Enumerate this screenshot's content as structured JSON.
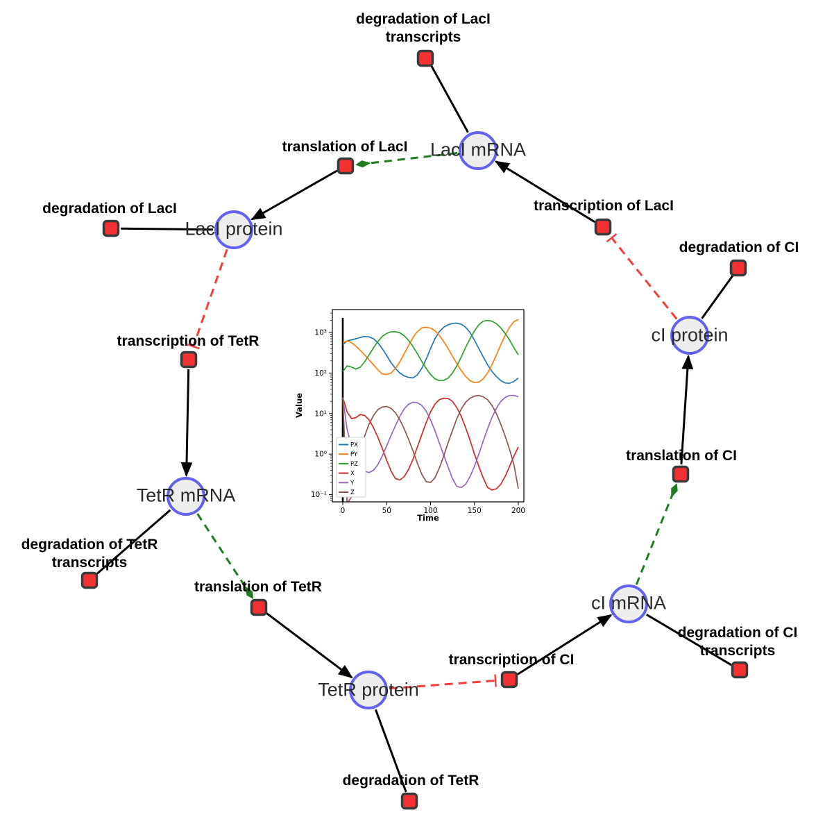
{
  "figure": {
    "title": "repressilator reaction network",
    "colors": {
      "species_fill": "#ededed",
      "species_border": "#6262f2",
      "reaction_fill": "#f43131",
      "reaction_border": "#3a3a3a",
      "production_edge": "#000000",
      "consumption_edge": "#000000",
      "modifier_edge": "#1e7d1e",
      "inhibition_edge": "#f93b3b"
    }
  },
  "diagram": {
    "species": [
      {
        "label": "LacI mRNA"
      },
      {
        "label": "LacI protein"
      },
      {
        "label": "TetR mRNA"
      },
      {
        "label": "TetR protein"
      },
      {
        "label": "cI mRNA"
      },
      {
        "label": "cI protein"
      }
    ],
    "reactions": [
      {
        "lines": [
          "degradation of LacI",
          "transcripts"
        ]
      },
      {
        "lines": [
          "translation of LacI"
        ]
      },
      {
        "lines": [
          "degradation of LacI"
        ]
      },
      {
        "lines": [
          "transcription of LacI"
        ]
      },
      {
        "lines": [
          "degradation of CI"
        ]
      },
      {
        "lines": [
          "transcription of TetR"
        ]
      },
      {
        "lines": [
          "degradation of TetR",
          "transcripts"
        ]
      },
      {
        "lines": [
          "translation of TetR"
        ]
      },
      {
        "lines": [
          "translation of CI"
        ]
      },
      {
        "lines": [
          "degradation of CI",
          "transcripts"
        ]
      },
      {
        "lines": [
          "transcription of CI"
        ]
      },
      {
        "lines": [
          "degradation of TetR"
        ]
      }
    ],
    "edges": [
      {
        "source": "LacI mRNA",
        "target": "degradation of LacI transcripts",
        "type": "consumption"
      },
      {
        "source": "transcription of LacI",
        "target": "LacI mRNA",
        "type": "production"
      },
      {
        "source": "LacI mRNA",
        "target": "translation of LacI",
        "type": "modifier"
      },
      {
        "source": "translation of LacI",
        "target": "LacI protein",
        "type": "production"
      },
      {
        "source": "LacI protein",
        "target": "degradation of LacI",
        "type": "consumption"
      },
      {
        "source": "LacI protein",
        "target": "transcription of TetR",
        "type": "inhibition"
      },
      {
        "source": "transcription of TetR",
        "target": "TetR mRNA",
        "type": "production"
      },
      {
        "source": "TetR mRNA",
        "target": "degradation of TetR transcripts",
        "type": "consumption"
      },
      {
        "source": "TetR mRNA",
        "target": "translation of TetR",
        "type": "modifier"
      },
      {
        "source": "translation of TetR",
        "target": "TetR protein",
        "type": "production"
      },
      {
        "source": "TetR protein",
        "target": "degradation of TetR",
        "type": "consumption"
      },
      {
        "source": "TetR protein",
        "target": "transcription of CI",
        "type": "inhibition"
      },
      {
        "source": "transcription of CI",
        "target": "cI mRNA",
        "type": "production"
      },
      {
        "source": "cI mRNA",
        "target": "degradation of CI transcripts",
        "type": "consumption"
      },
      {
        "source": "cI mRNA",
        "target": "translation of CI",
        "type": "modifier"
      },
      {
        "source": "translation of CI",
        "target": "cI protein",
        "type": "production"
      },
      {
        "source": "cI protein",
        "target": "degradation of CI",
        "type": "consumption"
      },
      {
        "source": "cI protein",
        "target": "transcription of LacI",
        "type": "inhibition"
      }
    ]
  },
  "chart_data": {
    "type": "line",
    "title": "",
    "xlabel": "Time",
    "ylabel": "Value",
    "yscale": "log",
    "xlim": [
      -10,
      210
    ],
    "ylim": [
      0.067,
      3600
    ],
    "xticks": [
      0,
      50,
      100,
      150,
      200
    ],
    "yticks": [
      {
        "label": "10³",
        "value": 1000
      },
      {
        "label": "10²",
        "value": 100
      },
      {
        "label": "10¹",
        "value": 10
      },
      {
        "label": "10⁰",
        "value": 1
      },
      {
        "label": "10⁻¹",
        "value": 0.1
      }
    ],
    "vline_x": 0,
    "legend_position": "lower left",
    "t": [
      0,
      5,
      10,
      15,
      20,
      25,
      30,
      35,
      40,
      45,
      50,
      55,
      60,
      65,
      70,
      75,
      80,
      85,
      90,
      95,
      100,
      105,
      110,
      115,
      120,
      125,
      130,
      135,
      140,
      145,
      150,
      155,
      160,
      165,
      170,
      175,
      180,
      185,
      190,
      195,
      200
    ],
    "series": [
      {
        "name": "PX",
        "color": "#1f77b4",
        "values": [
          500,
          620,
          660,
          700,
          760,
          800,
          780,
          700,
          560,
          400,
          270,
          180,
          130,
          100,
          85,
          78,
          76,
          90,
          130,
          220,
          400,
          700,
          1050,
          1350,
          1550,
          1680,
          1700,
          1600,
          1350,
          1000,
          650,
          400,
          250,
          160,
          110,
          82,
          65,
          57,
          56,
          62,
          75
        ]
      },
      {
        "name": "PY",
        "color": "#ff7f0e",
        "values": [
          560,
          620,
          560,
          460,
          360,
          280,
          210,
          160,
          120,
          95,
          92,
          100,
          130,
          190,
          300,
          480,
          750,
          1050,
          1300,
          1350,
          1280,
          1100,
          850,
          600,
          400,
          260,
          170,
          115,
          82,
          65,
          58,
          60,
          72,
          100,
          160,
          280,
          500,
          850,
          1350,
          1850,
          2100
        ]
      },
      {
        "name": "PZ",
        "color": "#2ca02c",
        "values": [
          110,
          150,
          140,
          125,
          140,
          190,
          280,
          420,
          600,
          800,
          950,
          1040,
          1050,
          980,
          830,
          640,
          450,
          300,
          195,
          130,
          92,
          72,
          65,
          66,
          75,
          100,
          150,
          250,
          430,
          700,
          1100,
          1550,
          1900,
          2000,
          1900,
          1650,
          1300,
          950,
          650,
          420,
          280
        ]
      },
      {
        "name": "X",
        "color": "#d62728",
        "values": [
          25,
          11,
          7.5,
          8,
          9.5,
          9,
          7,
          4.5,
          2.6,
          1.4,
          0.7,
          0.38,
          0.25,
          0.23,
          0.28,
          0.42,
          0.75,
          1.5,
          3,
          6,
          11,
          17,
          22,
          24,
          23.5,
          20,
          14,
          8.5,
          4.5,
          2.2,
          1.0,
          0.5,
          0.26,
          0.15,
          0.13,
          0.14,
          0.18,
          0.28,
          0.5,
          0.9,
          1.5
        ]
      },
      {
        "name": "Y",
        "color": "#9467bd",
        "values": [
          25,
          4,
          1.6,
          0.8,
          0.5,
          0.38,
          0.35,
          0.4,
          0.55,
          0.9,
          1.6,
          2.9,
          5,
          8.5,
          13,
          17,
          19,
          18.5,
          16,
          11.5,
          7,
          3.8,
          1.9,
          0.95,
          0.48,
          0.25,
          0.16,
          0.15,
          0.18,
          0.28,
          0.5,
          1.0,
          2.1,
          4.2,
          8,
          13.5,
          20,
          25,
          28,
          28,
          26
        ]
      },
      {
        "name": "Z",
        "color": "#8c564b",
        "values": [
          25,
          0.06,
          0.09,
          0.35,
          1.1,
          2.8,
          5.5,
          9,
          12.5,
          14.5,
          15,
          13.5,
          10.5,
          7,
          4.2,
          2.3,
          1.2,
          0.6,
          0.32,
          0.21,
          0.2,
          0.26,
          0.45,
          0.9,
          1.9,
          3.8,
          7.5,
          13,
          19,
          24,
          27,
          28,
          26,
          22,
          16,
          10,
          5.5,
          2.8,
          1.3,
          0.55,
          0.14
        ]
      }
    ]
  }
}
